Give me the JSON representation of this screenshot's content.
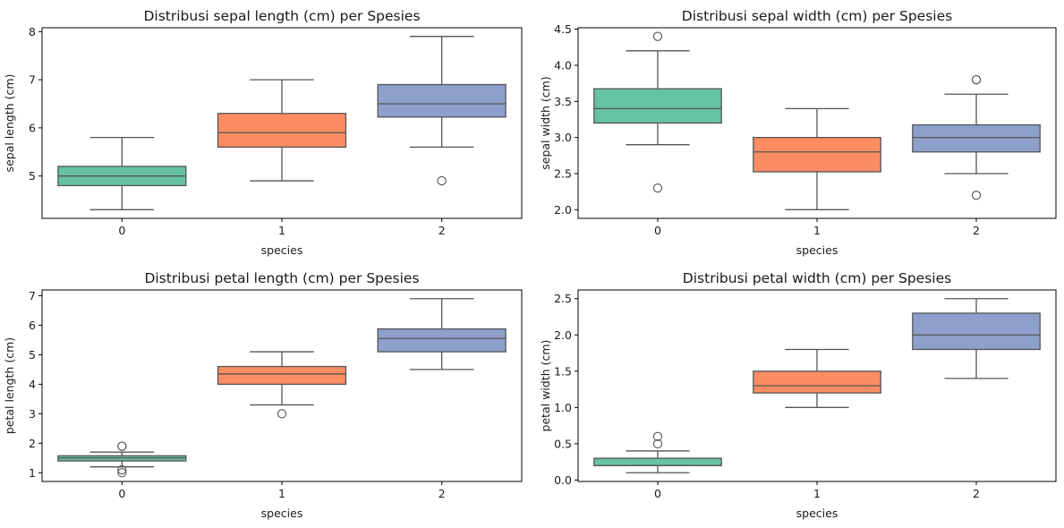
{
  "colors": [
    "#66c2a5",
    "#fc8d62",
    "#8da0cb"
  ],
  "chart_data": [
    {
      "type": "box",
      "title": "Distribusi sepal length (cm) per Spesies",
      "xlabel": "species",
      "ylabel": "sepal length (cm)",
      "categories": [
        "0",
        "1",
        "2"
      ],
      "ylim": [
        4.12,
        8.08
      ],
      "yticks": [
        5,
        6,
        7,
        8
      ],
      "boxes": [
        {
          "min": 4.3,
          "q1": 4.8,
          "median": 5.0,
          "q3": 5.2,
          "max": 5.8,
          "outliers": []
        },
        {
          "min": 4.9,
          "q1": 5.6,
          "median": 5.9,
          "q3": 6.3,
          "max": 7.0,
          "outliers": []
        },
        {
          "min": 5.6,
          "q1": 6.225,
          "median": 6.5,
          "q3": 6.9,
          "max": 7.9,
          "outliers": [
            4.9
          ]
        }
      ]
    },
    {
      "type": "box",
      "title": "Distribusi sepal width (cm) per Spesies",
      "xlabel": "species",
      "ylabel": "sepal width (cm)",
      "categories": [
        "0",
        "1",
        "2"
      ],
      "ylim": [
        1.88,
        4.52
      ],
      "yticks": [
        2.0,
        2.5,
        3.0,
        3.5,
        4.0,
        4.5
      ],
      "boxes": [
        {
          "min": 2.9,
          "q1": 3.2,
          "median": 3.4,
          "q3": 3.675,
          "max": 4.2,
          "outliers": [
            2.3,
            4.4
          ]
        },
        {
          "min": 2.0,
          "q1": 2.525,
          "median": 2.8,
          "q3": 3.0,
          "max": 3.4,
          "outliers": []
        },
        {
          "min": 2.5,
          "q1": 2.8,
          "median": 3.0,
          "q3": 3.175,
          "max": 3.6,
          "outliers": [
            2.2,
            3.8,
            3.8
          ]
        }
      ]
    },
    {
      "type": "box",
      "title": "Distribusi petal length (cm) per Spesies",
      "xlabel": "species",
      "ylabel": "petal length (cm)",
      "categories": [
        "0",
        "1",
        "2"
      ],
      "ylim": [
        0.705,
        7.195
      ],
      "yticks": [
        1,
        2,
        3,
        4,
        5,
        6,
        7
      ],
      "boxes": [
        {
          "min": 1.2,
          "q1": 1.4,
          "median": 1.5,
          "q3": 1.575,
          "max": 1.7,
          "outliers": [
            1.0,
            1.1,
            1.9,
            1.9
          ]
        },
        {
          "min": 3.3,
          "q1": 4.0,
          "median": 4.35,
          "q3": 4.6,
          "max": 5.1,
          "outliers": [
            3.0
          ]
        },
        {
          "min": 4.5,
          "q1": 5.1,
          "median": 5.55,
          "q3": 5.875,
          "max": 6.9,
          "outliers": []
        }
      ]
    },
    {
      "type": "box",
      "title": "Distribusi petal width (cm) per Spesies",
      "xlabel": "species",
      "ylabel": "petal width (cm)",
      "categories": [
        "0",
        "1",
        "2"
      ],
      "ylim": [
        -0.02,
        2.62
      ],
      "yticks": [
        0.0,
        0.5,
        1.0,
        1.5,
        2.0,
        2.5
      ],
      "boxes": [
        {
          "min": 0.1,
          "q1": 0.2,
          "median": 0.2,
          "q3": 0.3,
          "max": 0.4,
          "outliers": [
            0.5,
            0.6
          ]
        },
        {
          "min": 1.0,
          "q1": 1.2,
          "median": 1.3,
          "q3": 1.5,
          "max": 1.8,
          "outliers": []
        },
        {
          "min": 1.4,
          "q1": 1.8,
          "median": 2.0,
          "q3": 2.3,
          "max": 2.5,
          "outliers": []
        }
      ]
    }
  ]
}
